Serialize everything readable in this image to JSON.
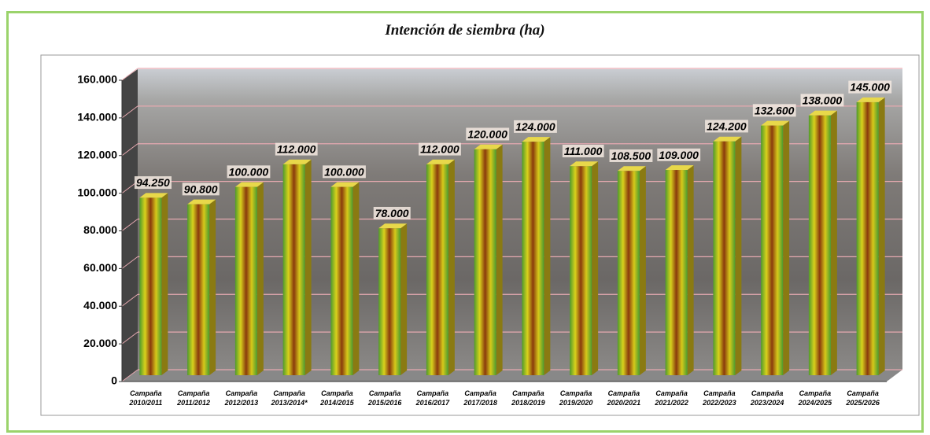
{
  "chart_data": {
    "type": "bar",
    "title": "Intención de siembra (ha)",
    "categories": [
      "Campaña 2010/2011",
      "Campaña 2011/2012",
      "Campaña 2012/2013",
      "Campaña 2013/2014*",
      "Campaña 2014/2015",
      "Campaña 2015/2016",
      "Campaña 2016/2017",
      "Campaña 2017/2018",
      "Campaña 2018/2019",
      "Campaña 2019/2020",
      "Campaña 2020/2021",
      "Campaña 2021/2022",
      "Campaña 2022/2023",
      "Campaña 2023/2024",
      "Campaña 2024/2025",
      "Campaña 2025/2026"
    ],
    "values": [
      94250,
      90800,
      100000,
      112000,
      100000,
      78000,
      112000,
      120000,
      124000,
      111000,
      108500,
      109000,
      124200,
      132600,
      138000,
      145000
    ],
    "value_labels": [
      "94.250",
      "90.800",
      "100.000",
      "112.000",
      "100.000",
      "78.000",
      "112.000",
      "120.000",
      "124.000",
      "111.000",
      "108.500",
      "109.000",
      "124.200",
      "132.600",
      "138.000",
      "145.000"
    ],
    "ylim": [
      0,
      160000
    ],
    "yticks": [
      0,
      {
        "value": 20000,
        "label": "20.000"
      },
      {
        "value": 40000,
        "label": "40.000"
      },
      {
        "value": 60000,
        "label": "60.000"
      },
      {
        "value": 80000,
        "label": "80.000"
      },
      {
        "value": 100000,
        "label": "100.000"
      },
      {
        "value": 120000,
        "label": "120.000"
      },
      {
        "value": 140000,
        "label": "140.000"
      },
      {
        "value": 160000,
        "label": "160.000"
      }
    ],
    "grid": true
  }
}
